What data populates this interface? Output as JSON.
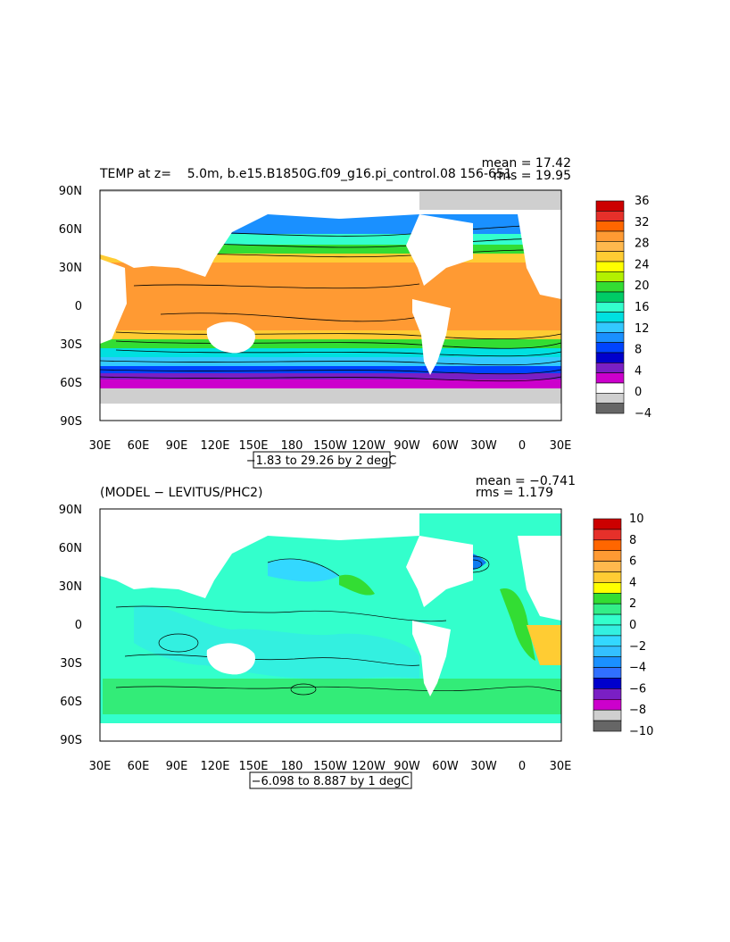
{
  "panels": [
    {
      "title": "TEMP at z=    5.0m, b.e15.B1850G.f09_g16.pi_control.08 156-651",
      "mean_label": "mean = 17.42",
      "rms_label": "rms = 19.95",
      "range_label": "−1.83 to 29.26 by 2 degC",
      "colorbar_labels": [
        "36",
        "32",
        "28",
        "24",
        "20",
        "16",
        "12",
        "8",
        "4",
        "0",
        "−4"
      ],
      "colorbar_colors": [
        "#cc0000",
        "#e6302a",
        "#ff6600",
        "#ff9a33",
        "#ffb84d",
        "#ffcc33",
        "#ffff00",
        "#b3f000",
        "#33dd33",
        "#00cc66",
        "#33ffcc",
        "#00e0e0",
        "#33c8ff",
        "#1a90ff",
        "#0044ff",
        "#0000cc",
        "#7a1fc4",
        "#cc00cc",
        "#ffffff",
        "#cfcfcf",
        "#666666"
      ]
    },
    {
      "title": "(MODEL − LEVITUS/PHC2)",
      "mean_label": "mean = −0.741",
      "rms_label": "rms = 1.179",
      "range_label": "−6.098 to 8.887 by 1 degC",
      "colorbar_labels": [
        "10",
        "8",
        "6",
        "4",
        "2",
        "0",
        "−2",
        "−4",
        "−6",
        "−8",
        "−10"
      ],
      "colorbar_colors": [
        "#cc0000",
        "#e6302a",
        "#ff6600",
        "#ff9a33",
        "#ffb84d",
        "#ffcc33",
        "#ffff00",
        "#33dd33",
        "#33ee88",
        "#33ffcc",
        "#33f0e0",
        "#33d8ff",
        "#33c0ff",
        "#1a90ff",
        "#3070ff",
        "#0000cc",
        "#7a1fc4",
        "#cc00cc",
        "#cfcfcf",
        "#666666"
      ]
    }
  ],
  "axes": {
    "x_ticks": [
      "30E",
      "60E",
      "90E",
      "120E",
      "150E",
      "180",
      "150W",
      "120W",
      "90W",
      "60W",
      "30W",
      "0",
      "30E"
    ],
    "y_ticks": [
      "90N",
      "60N",
      "30N",
      "0",
      "30S",
      "60S",
      "90S"
    ]
  },
  "chart_data": [
    {
      "type": "heatmap",
      "title": "TEMP at z=    5.0m, b.e15.B1850G.f09_g16.pi_control.08 156-651",
      "units": "degC",
      "x_range": [
        "30E",
        "30E"
      ],
      "y_range": [
        "90S",
        "90N"
      ],
      "contour_range": [
        -1.83,
        29.26
      ],
      "contour_interval": 2,
      "colorbar_ticks": [
        36,
        32,
        28,
        24,
        20,
        16,
        12,
        8,
        4,
        0,
        -4
      ],
      "mean": 17.42,
      "rms": 19.95
    },
    {
      "type": "heatmap",
      "title": "(MODEL − LEVITUS/PHC2)",
      "units": "degC",
      "x_range": [
        "30E",
        "30E"
      ],
      "y_range": [
        "90S",
        "90N"
      ],
      "contour_range": [
        -6.098,
        8.887
      ],
      "contour_interval": 1,
      "colorbar_ticks": [
        10,
        8,
        6,
        4,
        2,
        0,
        -2,
        -4,
        -6,
        -8,
        -10
      ],
      "mean": -0.741,
      "rms": 1.179
    }
  ]
}
